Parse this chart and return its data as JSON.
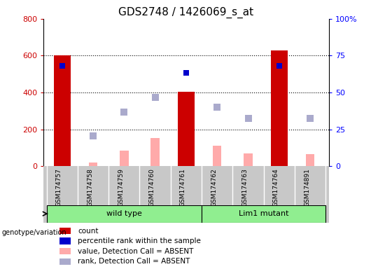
{
  "title": "GDS2748 / 1426069_s_at",
  "samples": [
    "GSM174757",
    "GSM174758",
    "GSM174759",
    "GSM174760",
    "GSM174761",
    "GSM174762",
    "GSM174763",
    "GSM174764",
    "GSM174891"
  ],
  "count": [
    600,
    0,
    0,
    0,
    405,
    0,
    0,
    630,
    0
  ],
  "percentile_rank": [
    545,
    null,
    null,
    null,
    505,
    null,
    null,
    545,
    null
  ],
  "value_absent": [
    null,
    20,
    85,
    155,
    null,
    110,
    70,
    null,
    65
  ],
  "rank_absent": [
    null,
    165,
    295,
    375,
    null,
    320,
    258,
    null,
    258
  ],
  "count_color": "#cc0000",
  "percentile_color": "#0000cc",
  "value_absent_color": "#ffaaaa",
  "rank_absent_color": "#aaaacc",
  "left_ylim": [
    0,
    800
  ],
  "right_ylim": [
    0,
    100
  ],
  "left_yticks": [
    0,
    200,
    400,
    600,
    800
  ],
  "right_yticks": [
    0,
    25,
    50,
    75,
    100
  ],
  "right_yticklabels": [
    "0",
    "25",
    "50",
    "75",
    "100%"
  ],
  "wild_type_label": "wild type",
  "lim1_mutant_label": "Lim1 mutant",
  "genotype_label": "genotype/variation",
  "legend_items": [
    {
      "label": "count",
      "color": "#cc0000"
    },
    {
      "label": "percentile rank within the sample",
      "color": "#0000cc"
    },
    {
      "label": "value, Detection Call = ABSENT",
      "color": "#ffaaaa"
    },
    {
      "label": "rank, Detection Call = ABSENT",
      "color": "#aaaacc"
    }
  ],
  "n_wild_type": 5,
  "n_lim1_mutant": 4,
  "xlabel_bg": "#c8c8c8",
  "green_bg": "#90ee90",
  "title_fontsize": 11,
  "bar_width": 0.55,
  "pink_bar_width": 0.28
}
